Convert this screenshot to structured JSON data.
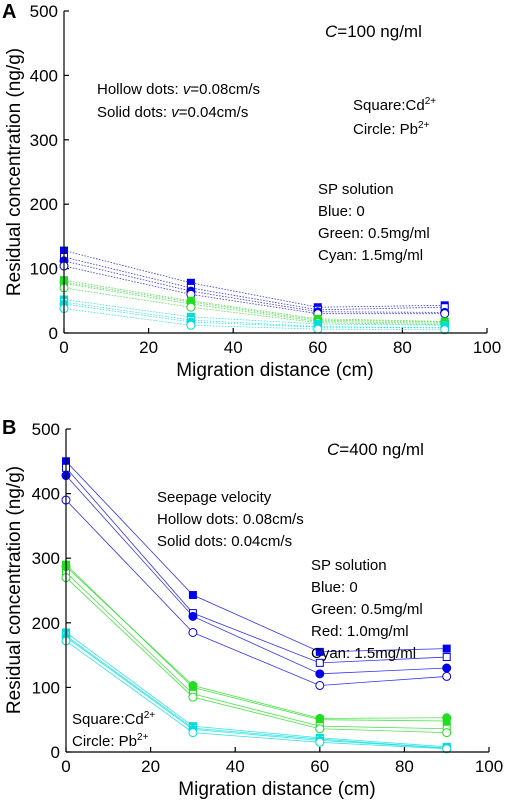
{
  "chart_data": [
    {
      "type": "line",
      "panel_label": "A",
      "xlabel": "Migration distance (cm)",
      "ylabel": "Residual concentration (ng/g)",
      "xlim": [
        0,
        100
      ],
      "ylim": [
        0,
        500
      ],
      "xticks": [
        "0",
        "20",
        "40",
        "60",
        "80",
        "100"
      ],
      "yticks": [
        "0",
        "100",
        "200",
        "300",
        "400",
        "500"
      ],
      "grid": false,
      "x": [
        0,
        30,
        60,
        90
      ],
      "annotation_c_var": "C",
      "annotation_c_val": "=100 ng/ml",
      "annotation_hollow_pre": "Hollow dots: ",
      "annotation_hollow_v": "v",
      "annotation_hollow_val": "=0.08cm/s",
      "annotation_solid_pre": "Solid dots: ",
      "annotation_solid_v": "v",
      "annotation_solid_val": "=0.04cm/s",
      "annotation_square": "Square:Cd",
      "annotation_square_sup": "2+",
      "annotation_circle": "Circle: Pb",
      "annotation_circle_sup": "2+",
      "sp_lines": [
        "SP solution",
        "Blue:   0",
        "Green: 0.5mg/ml",
        "Cyan:  1.5mg/ml"
      ],
      "series": [
        {
          "color": "#0000ee",
          "marker": "square",
          "fill": true,
          "values": [
            128,
            78,
            40,
            43
          ]
        },
        {
          "color": "#0000ee",
          "marker": "square",
          "fill": false,
          "values": [
            118,
            70,
            36,
            40
          ]
        },
        {
          "color": "#0000ee",
          "marker": "circle",
          "fill": true,
          "values": [
            112,
            65,
            33,
            32
          ]
        },
        {
          "color": "#0000ee",
          "marker": "circle",
          "fill": false,
          "values": [
            104,
            60,
            30,
            30
          ]
        },
        {
          "color": "#22dd22",
          "marker": "square",
          "fill": true,
          "values": [
            82,
            50,
            22,
            18
          ]
        },
        {
          "color": "#22dd22",
          "marker": "square",
          "fill": false,
          "values": [
            77,
            45,
            18,
            15
          ]
        },
        {
          "color": "#22dd22",
          "marker": "circle",
          "fill": true,
          "values": [
            79,
            48,
            20,
            17
          ]
        },
        {
          "color": "#22dd22",
          "marker": "circle",
          "fill": false,
          "values": [
            70,
            40,
            16,
            13
          ]
        },
        {
          "color": "#00dddd",
          "marker": "square",
          "fill": true,
          "values": [
            52,
            25,
            14,
            12
          ]
        },
        {
          "color": "#00dddd",
          "marker": "square",
          "fill": false,
          "values": [
            48,
            20,
            10,
            8
          ]
        },
        {
          "color": "#00dddd",
          "marker": "circle",
          "fill": true,
          "values": [
            45,
            17,
            9,
            8
          ]
        },
        {
          "color": "#00dddd",
          "marker": "circle",
          "fill": false,
          "values": [
            38,
            12,
            6,
            5
          ]
        }
      ]
    },
    {
      "type": "line",
      "panel_label": "B",
      "xlabel": "Migration distance (cm)",
      "ylabel": "Residual concentration (ng/g)",
      "xlim": [
        0,
        100
      ],
      "ylim": [
        0,
        500
      ],
      "xticks": [
        "0",
        "20",
        "40",
        "60",
        "80",
        "100"
      ],
      "yticks": [
        "0",
        "100",
        "200",
        "300",
        "400",
        "500"
      ],
      "grid": false,
      "x": [
        0,
        30,
        60,
        90
      ],
      "annotation_c_var": "C",
      "annotation_c_val": "=400 ng/ml",
      "seepage_lines": [
        "Seepage velocity",
        "Hollow dots: 0.08cm/s",
        "Solid dots:   0.04cm/s"
      ],
      "sp_lines": [
        "SP solution",
        "Blue:   0",
        "Green: 0.5mg/ml",
        "Red:    1.0mg/ml",
        "Cyan:  1.5mg/ml"
      ],
      "annotation_square": "Square:Cd",
      "annotation_square_sup": "2+",
      "annotation_circle": "Circle: Pb",
      "annotation_circle_sup": "2+",
      "series": [
        {
          "color": "#0000ee",
          "marker": "square",
          "fill": true,
          "values": [
            450,
            243,
            155,
            160
          ]
        },
        {
          "color": "#0000ee",
          "marker": "square",
          "fill": false,
          "values": [
            440,
            215,
            138,
            147
          ]
        },
        {
          "color": "#0000ee",
          "marker": "circle",
          "fill": true,
          "values": [
            428,
            210,
            121,
            130
          ]
        },
        {
          "color": "#0000ee",
          "marker": "circle",
          "fill": false,
          "values": [
            390,
            185,
            103,
            117
          ]
        },
        {
          "color": "#22dd22",
          "marker": "square",
          "fill": true,
          "values": [
            290,
            100,
            50,
            48
          ]
        },
        {
          "color": "#22dd22",
          "marker": "square",
          "fill": false,
          "values": [
            278,
            90,
            40,
            36
          ]
        },
        {
          "color": "#22dd22",
          "marker": "circle",
          "fill": true,
          "values": [
            287,
            103,
            52,
            53
          ]
        },
        {
          "color": "#22dd22",
          "marker": "circle",
          "fill": false,
          "values": [
            270,
            85,
            36,
            30
          ]
        },
        {
          "color": "#00dddd",
          "marker": "square",
          "fill": true,
          "values": [
            185,
            40,
            22,
            8
          ]
        },
        {
          "color": "#00dddd",
          "marker": "square",
          "fill": false,
          "values": [
            180,
            37,
            20,
            6
          ]
        },
        {
          "color": "#00dddd",
          "marker": "circle",
          "fill": true,
          "values": [
            178,
            35,
            18,
            6
          ]
        },
        {
          "color": "#00dddd",
          "marker": "circle",
          "fill": false,
          "values": [
            172,
            30,
            15,
            5
          ]
        }
      ]
    }
  ]
}
